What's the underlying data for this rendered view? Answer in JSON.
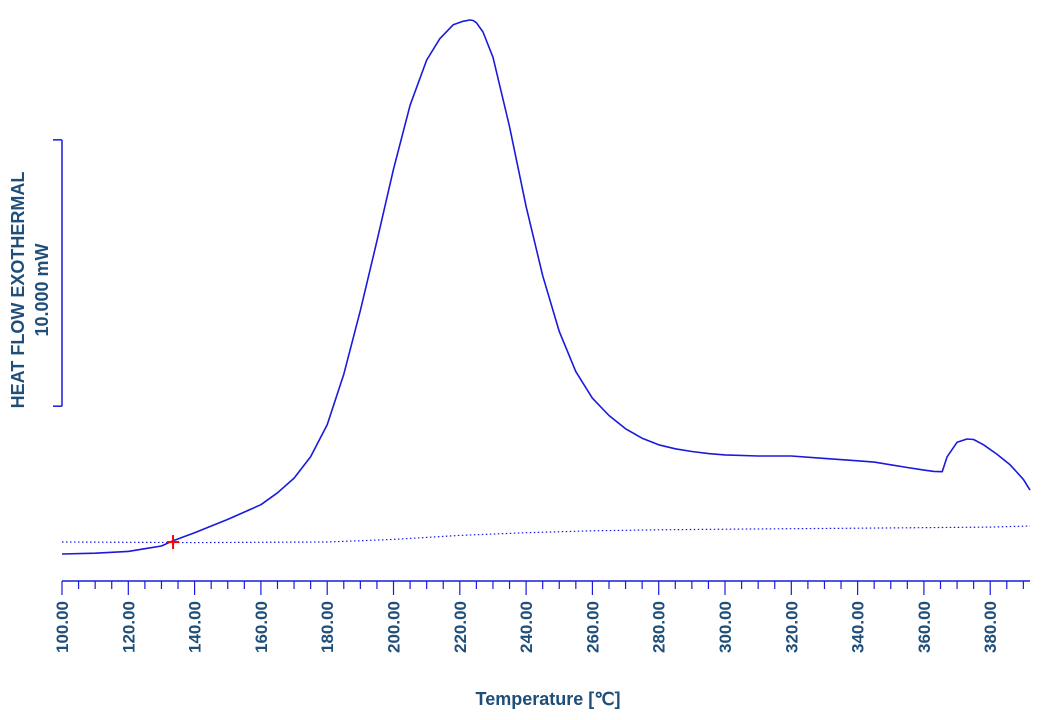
{
  "chart_data": {
    "type": "line",
    "xlabel": "Temperature [℃]",
    "ylabel_line1": "HEAT FLOW EXOTHERMAL",
    "ylabel_line2": "10.000 mW",
    "xlim": [
      100,
      392
    ],
    "x_ticks": [
      "100.00",
      "120.00",
      "140.00",
      "160.00",
      "180.00",
      "200.00",
      "220.00",
      "240.00",
      "260.00",
      "280.00",
      "300.00",
      "320.00",
      "340.00",
      "360.00",
      "380.00"
    ],
    "ylim": [
      -1.2,
      19.3
    ],
    "scale_bar": {
      "from": 4.8,
      "to": 14.8,
      "value_mW": 10
    },
    "grid": false,
    "colors": {
      "curve": "#1a1adb",
      "baseline": "#1a1adb",
      "marker": "#ff0000",
      "text": "#1f4e79"
    },
    "series": [
      {
        "style": "solid",
        "x": [
          100,
          110,
          120,
          125,
          130,
          133.5,
          140,
          150,
          160,
          165,
          170,
          175,
          180,
          185,
          190,
          195,
          200,
          205,
          210,
          214,
          218,
          221,
          223,
          224,
          225,
          227,
          230,
          235,
          240,
          245,
          250,
          255,
          260,
          265,
          270,
          275,
          280,
          285,
          290,
          295,
          300,
          310,
          320,
          330,
          340,
          345,
          350,
          355,
          360,
          363,
          365.5,
          367,
          370,
          373,
          375,
          378,
          382,
          386,
          390,
          392
        ],
        "y": [
          -0.75,
          -0.72,
          -0.65,
          -0.55,
          -0.45,
          -0.25,
          0.05,
          0.55,
          1.1,
          1.55,
          2.1,
          2.9,
          4.1,
          6.0,
          8.4,
          11.0,
          13.7,
          16.1,
          17.8,
          18.6,
          19.12,
          19.25,
          19.3,
          19.28,
          19.2,
          18.85,
          17.9,
          15.3,
          12.3,
          9.7,
          7.6,
          6.1,
          5.1,
          4.45,
          3.95,
          3.6,
          3.35,
          3.2,
          3.1,
          3.02,
          2.97,
          2.93,
          2.93,
          2.84,
          2.75,
          2.7,
          2.6,
          2.5,
          2.4,
          2.35,
          2.34,
          2.9,
          3.45,
          3.57,
          3.55,
          3.35,
          3.0,
          2.6,
          2.05,
          1.65
        ]
      },
      {
        "style": "dotted",
        "x": [
          100,
          140,
          180,
          200,
          220,
          240,
          260,
          280,
          300,
          340,
          380,
          392
        ],
        "y": [
          -0.3,
          -0.32,
          -0.3,
          -0.2,
          -0.05,
          0.05,
          0.12,
          0.16,
          0.18,
          0.22,
          0.26,
          0.3
        ]
      }
    ],
    "marker": {
      "x": 133.5,
      "y": -0.3,
      "symbol": "+"
    }
  }
}
